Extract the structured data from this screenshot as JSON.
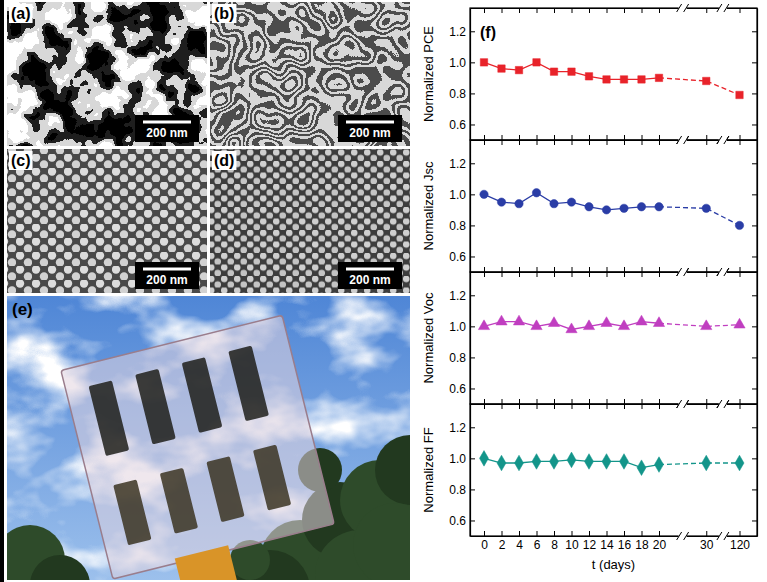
{
  "images": [
    {
      "label": "(a)",
      "scale_bar": "200 nm"
    },
    {
      "label": "(b)",
      "scale_bar": "200 nm"
    },
    {
      "label": "(c)",
      "scale_bar": "200 nm"
    },
    {
      "label": "(d)",
      "scale_bar": "200 nm"
    }
  ],
  "photo": {
    "label": "(e)"
  },
  "chart_label": "(f)",
  "chart_data": [
    {
      "type": "line",
      "ylabel": "Normalized PCE",
      "x": [
        0,
        2,
        4,
        6,
        8,
        10,
        12,
        14,
        16,
        18,
        20,
        30,
        120
      ],
      "values": [
        1.0,
        0.96,
        0.95,
        1.0,
        0.94,
        0.94,
        0.91,
        0.89,
        0.89,
        0.89,
        0.9,
        0.88,
        0.79
      ],
      "color": "#e8232a",
      "marker": "square",
      "xlim": [
        -1.6,
        125
      ],
      "ylim": [
        0.5,
        1.35
      ],
      "xticks": [
        0,
        2,
        4,
        6,
        8,
        10,
        12,
        14,
        16,
        18,
        20,
        30,
        120
      ],
      "yticks": [
        0.6,
        0.8,
        {
          "value": 1,
          "label": "1.0"
        },
        1.2
      ],
      "tick_labels": "y"
    },
    {
      "type": "line",
      "ylabel": "Normalized Jsc",
      "x": [
        0,
        2,
        4,
        6,
        8,
        10,
        12,
        14,
        16,
        18,
        20,
        30,
        120
      ],
      "values": [
        1.0,
        0.95,
        0.94,
        1.01,
        0.94,
        0.95,
        0.92,
        0.9,
        0.91,
        0.92,
        0.92,
        0.91,
        0.8
      ],
      "color": "#2a3da6",
      "marker": "circle",
      "xlim": [
        -1.6,
        125
      ],
      "ylim": [
        0.5,
        1.35
      ],
      "xticks": [
        0,
        2,
        4,
        6,
        8,
        10,
        12,
        14,
        16,
        18,
        20,
        30,
        120
      ],
      "yticks": [
        0.6,
        0.8,
        {
          "value": 1,
          "label": "1.0"
        },
        1.2
      ],
      "tick_labels": "y"
    },
    {
      "type": "line",
      "ylabel": "Normalized Voc",
      "x": [
        0,
        2,
        4,
        6,
        8,
        10,
        12,
        14,
        16,
        18,
        20,
        30,
        120
      ],
      "values": [
        1.0,
        1.03,
        1.03,
        1.0,
        1.02,
        0.98,
        1.0,
        1.02,
        1.0,
        1.03,
        1.02,
        1.0,
        1.01
      ],
      "color": "#c03ec0",
      "marker": "triangle",
      "xlim": [
        -1.6,
        125
      ],
      "ylim": [
        0.5,
        1.35
      ],
      "xticks": [
        0,
        2,
        4,
        6,
        8,
        10,
        12,
        14,
        16,
        18,
        20,
        30,
        120
      ],
      "yticks": [
        0.6,
        0.8,
        {
          "value": 1,
          "label": "1.0"
        },
        1.2
      ],
      "tick_labels": "y"
    },
    {
      "type": "line",
      "ylabel": "Normalized FF",
      "xlabel": "t (days)",
      "x": [
        0,
        2,
        4,
        6,
        8,
        10,
        12,
        14,
        16,
        18,
        20,
        30,
        120
      ],
      "values": [
        1.0,
        0.97,
        0.97,
        0.98,
        0.98,
        0.99,
        0.98,
        0.98,
        0.98,
        0.94,
        0.96,
        0.97,
        0.97
      ],
      "color": "#13958a",
      "marker": "diamond",
      "xlim": [
        -1.6,
        125
      ],
      "ylim": [
        0.5,
        1.35
      ],
      "xticks": [
        0,
        2,
        4,
        6,
        8,
        10,
        12,
        14,
        16,
        18,
        20,
        30,
        120
      ],
      "yticks": [
        0.6,
        0.8,
        {
          "value": 1,
          "label": "1.0"
        },
        1.2
      ]
    }
  ]
}
